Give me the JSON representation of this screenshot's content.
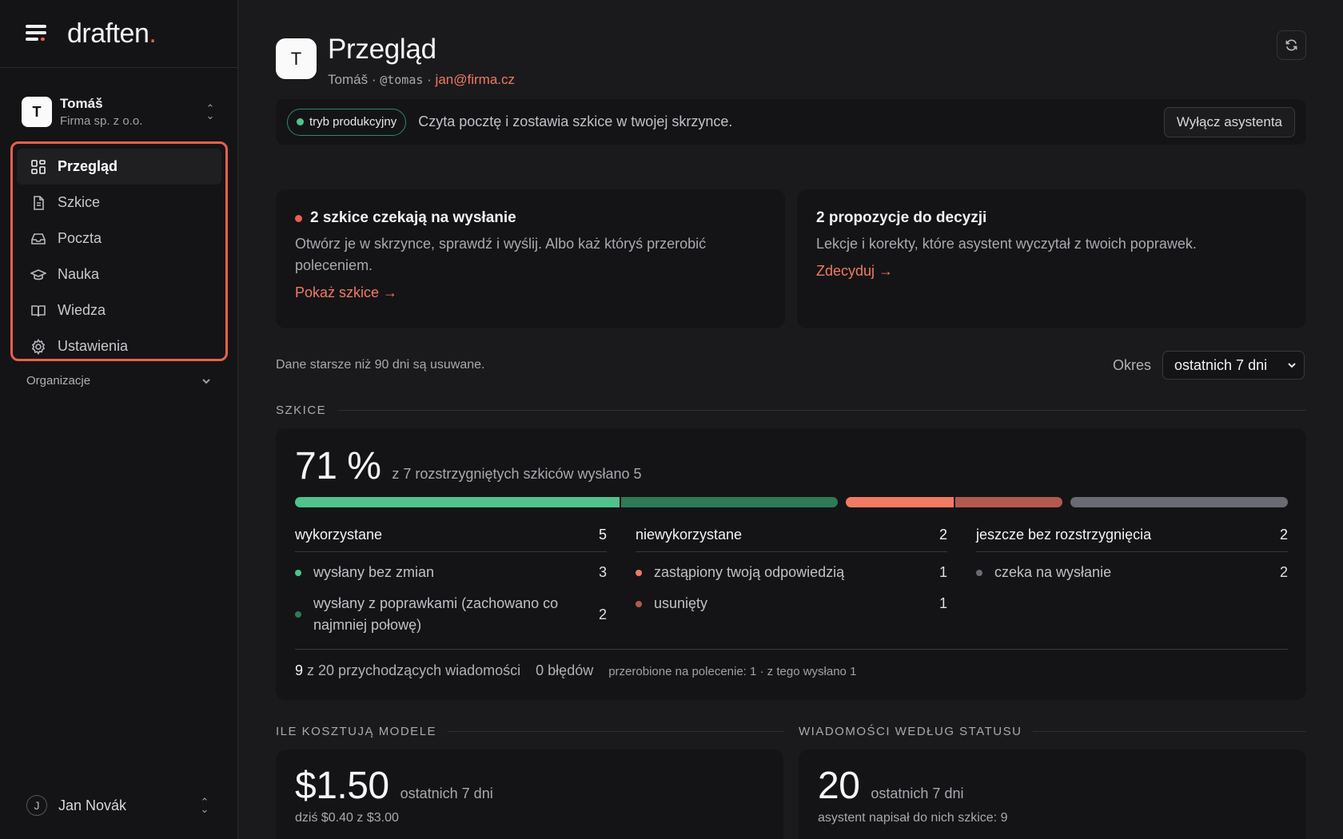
{
  "brand": {
    "name": "draften",
    "dot": "."
  },
  "account": {
    "initial": "T",
    "name": "Tomáš",
    "org": "Firma sp. z o.o."
  },
  "nav": [
    {
      "label": "Przegląd",
      "icon": "dashboard-icon",
      "active": true
    },
    {
      "label": "Szkice",
      "icon": "document-icon",
      "active": false
    },
    {
      "label": "Poczta",
      "icon": "inbox-icon",
      "active": false
    },
    {
      "label": "Nauka",
      "icon": "graduation-cap-icon",
      "active": false
    },
    {
      "label": "Wiedza",
      "icon": "book-icon",
      "active": false
    },
    {
      "label": "Ustawienia",
      "icon": "gear-icon",
      "active": false
    }
  ],
  "organizations_label": "Organizacje",
  "user": {
    "initial": "J",
    "name": "Jan Novák"
  },
  "header": {
    "initial": "T",
    "title": "Przegląd",
    "name": "Tomáš",
    "handle": "@tomas",
    "email": "jan@firma.cz",
    "sep": "·"
  },
  "banner": {
    "mode": "tryb produkcyjny",
    "text": "Czyta pocztę i zostawia szkice w twojej skrzynce.",
    "button": "Wyłącz asystenta"
  },
  "alerts": [
    {
      "title": "2 szkice czekają na wysłanie",
      "body": "Otwórz je w skrzynce, sprawdź i wyślij. Albo każ któryś przerobić poleceniem.",
      "link": "Pokaż szkice →"
    },
    {
      "title": "2 propozycje do decyzji",
      "body": "Lekcje i korekty, które asystent wyczytał z twoich poprawek.",
      "link": "Zdecyduj →"
    }
  ],
  "retention_note": "Dane starsze niż 90 dni są usuwane.",
  "period": {
    "label": "Okres",
    "value": "ostatnich 7 dni"
  },
  "drafts": {
    "section": "SZKICE",
    "percent": "71 %",
    "summary": "z 7 rozstrzygniętych szkiców wysłano 5",
    "bar": [
      {
        "value": 3,
        "color": "#4fc28e"
      },
      {
        "value": 2,
        "color": "#2f7a56"
      },
      {
        "value": 1,
        "color": "#f07a63"
      },
      {
        "value": 1,
        "color": "#b35a4f"
      },
      {
        "value": 2,
        "color": "#6a6a72"
      }
    ],
    "groups": [
      {
        "title": "wykorzystane",
        "count": "5",
        "items": [
          {
            "label": "wysłany bez zmian",
            "count": "3",
            "color": "#4fc28e"
          },
          {
            "label": "wysłany z poprawkami (zachowano co najmniej połowę)",
            "count": "2",
            "color": "#2f7a56"
          }
        ]
      },
      {
        "title": "niewykorzystane",
        "count": "2",
        "items": [
          {
            "label": "zastąpiony twoją odpowiedzią",
            "count": "1",
            "color": "#f07a63"
          },
          {
            "label": "usunięty",
            "count": "1",
            "color": "#b35a4f"
          }
        ]
      },
      {
        "title": "jeszcze bez rozstrzygnięcia",
        "count": "2",
        "items": [
          {
            "label": "czeka na wysłanie",
            "count": "2",
            "color": "#6a6a72"
          }
        ]
      }
    ],
    "footer": {
      "num": "9",
      "incoming": "z 20 przychodzących wiadomości",
      "errors": "0 błędów",
      "reworked": "przerobione na polecenie: 1 · z tego wysłano 1"
    }
  },
  "costs": {
    "section": "ILE KOSZTUJĄ MODELE",
    "value": "$1.50",
    "period": "ostatnich 7 dni",
    "detail": "dziś $0.40 z $3.00"
  },
  "messages": {
    "section": "WIADOMOŚCI WEDŁUG STATUSU",
    "value": "20",
    "period": "ostatnich 7 dni",
    "detail": "asystent napisał do nich szkice: 9"
  }
}
